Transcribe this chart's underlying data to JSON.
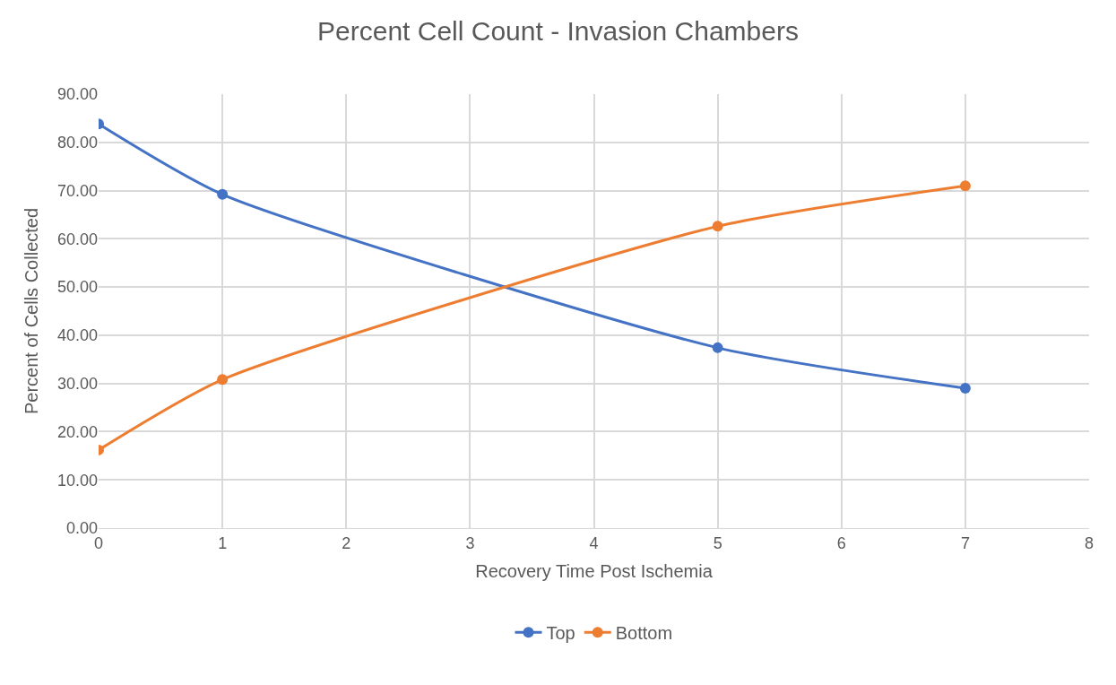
{
  "chart_data": {
    "type": "line",
    "title": "Percent Cell Count - Invasion Chambers",
    "xlabel": "Recovery Time Post Ischemia",
    "ylabel": "Percent of Cells Collected",
    "x": [
      0,
      1,
      5,
      7
    ],
    "series": [
      {
        "name": "Top",
        "color": "#4472c4",
        "values": [
          83.8,
          69.2,
          37.4,
          29.0
        ]
      },
      {
        "name": "Bottom",
        "color": "#ed7d31",
        "values": [
          16.2,
          30.8,
          62.6,
          71.0
        ]
      }
    ],
    "xlim": [
      0,
      8
    ],
    "xticks": [
      0,
      1,
      2,
      3,
      4,
      5,
      6,
      7,
      8
    ],
    "ylim": [
      0,
      90
    ],
    "yticks": [
      {
        "value": 0,
        "label": "0.00"
      },
      {
        "value": 10,
        "label": "10.00"
      },
      {
        "value": 20,
        "label": "20.00"
      },
      {
        "value": 30,
        "label": "30.00"
      },
      {
        "value": 40,
        "label": "40.00"
      },
      {
        "value": 50,
        "label": "50.00"
      },
      {
        "value": 60,
        "label": "60.00"
      },
      {
        "value": 70,
        "label": "70.00"
      },
      {
        "value": 80,
        "label": "80.00"
      },
      {
        "value": 90,
        "label": "90.00"
      }
    ],
    "grid": true,
    "legend": "bottom",
    "marker": "circle",
    "line_style": "solid"
  }
}
